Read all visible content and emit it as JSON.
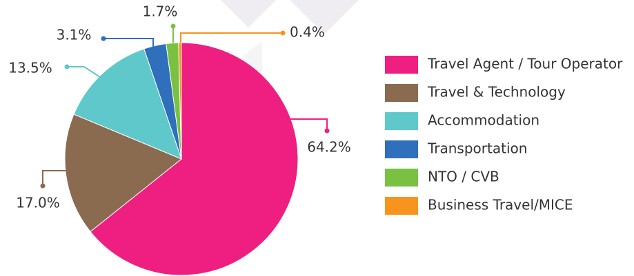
{
  "chart_data": {
    "type": "pie",
    "categories": [
      "Travel Agent / Tour Operator",
      "Travel & Technology",
      "Accommodation",
      "Transportation",
      "NTO / CVB",
      "Business Travel/MICE"
    ],
    "values": [
      64.2,
      17.0,
      13.5,
      3.1,
      1.7,
      0.4
    ],
    "value_labels": [
      "64.2%",
      "17.0%",
      "13.5%",
      "3.1%",
      "1.7%",
      "0.4%"
    ],
    "colors": [
      "#ee1f80",
      "#8b6b50",
      "#5fc8cb",
      "#2f6fbb",
      "#7ac143",
      "#f7941d"
    ],
    "legend": "right"
  }
}
